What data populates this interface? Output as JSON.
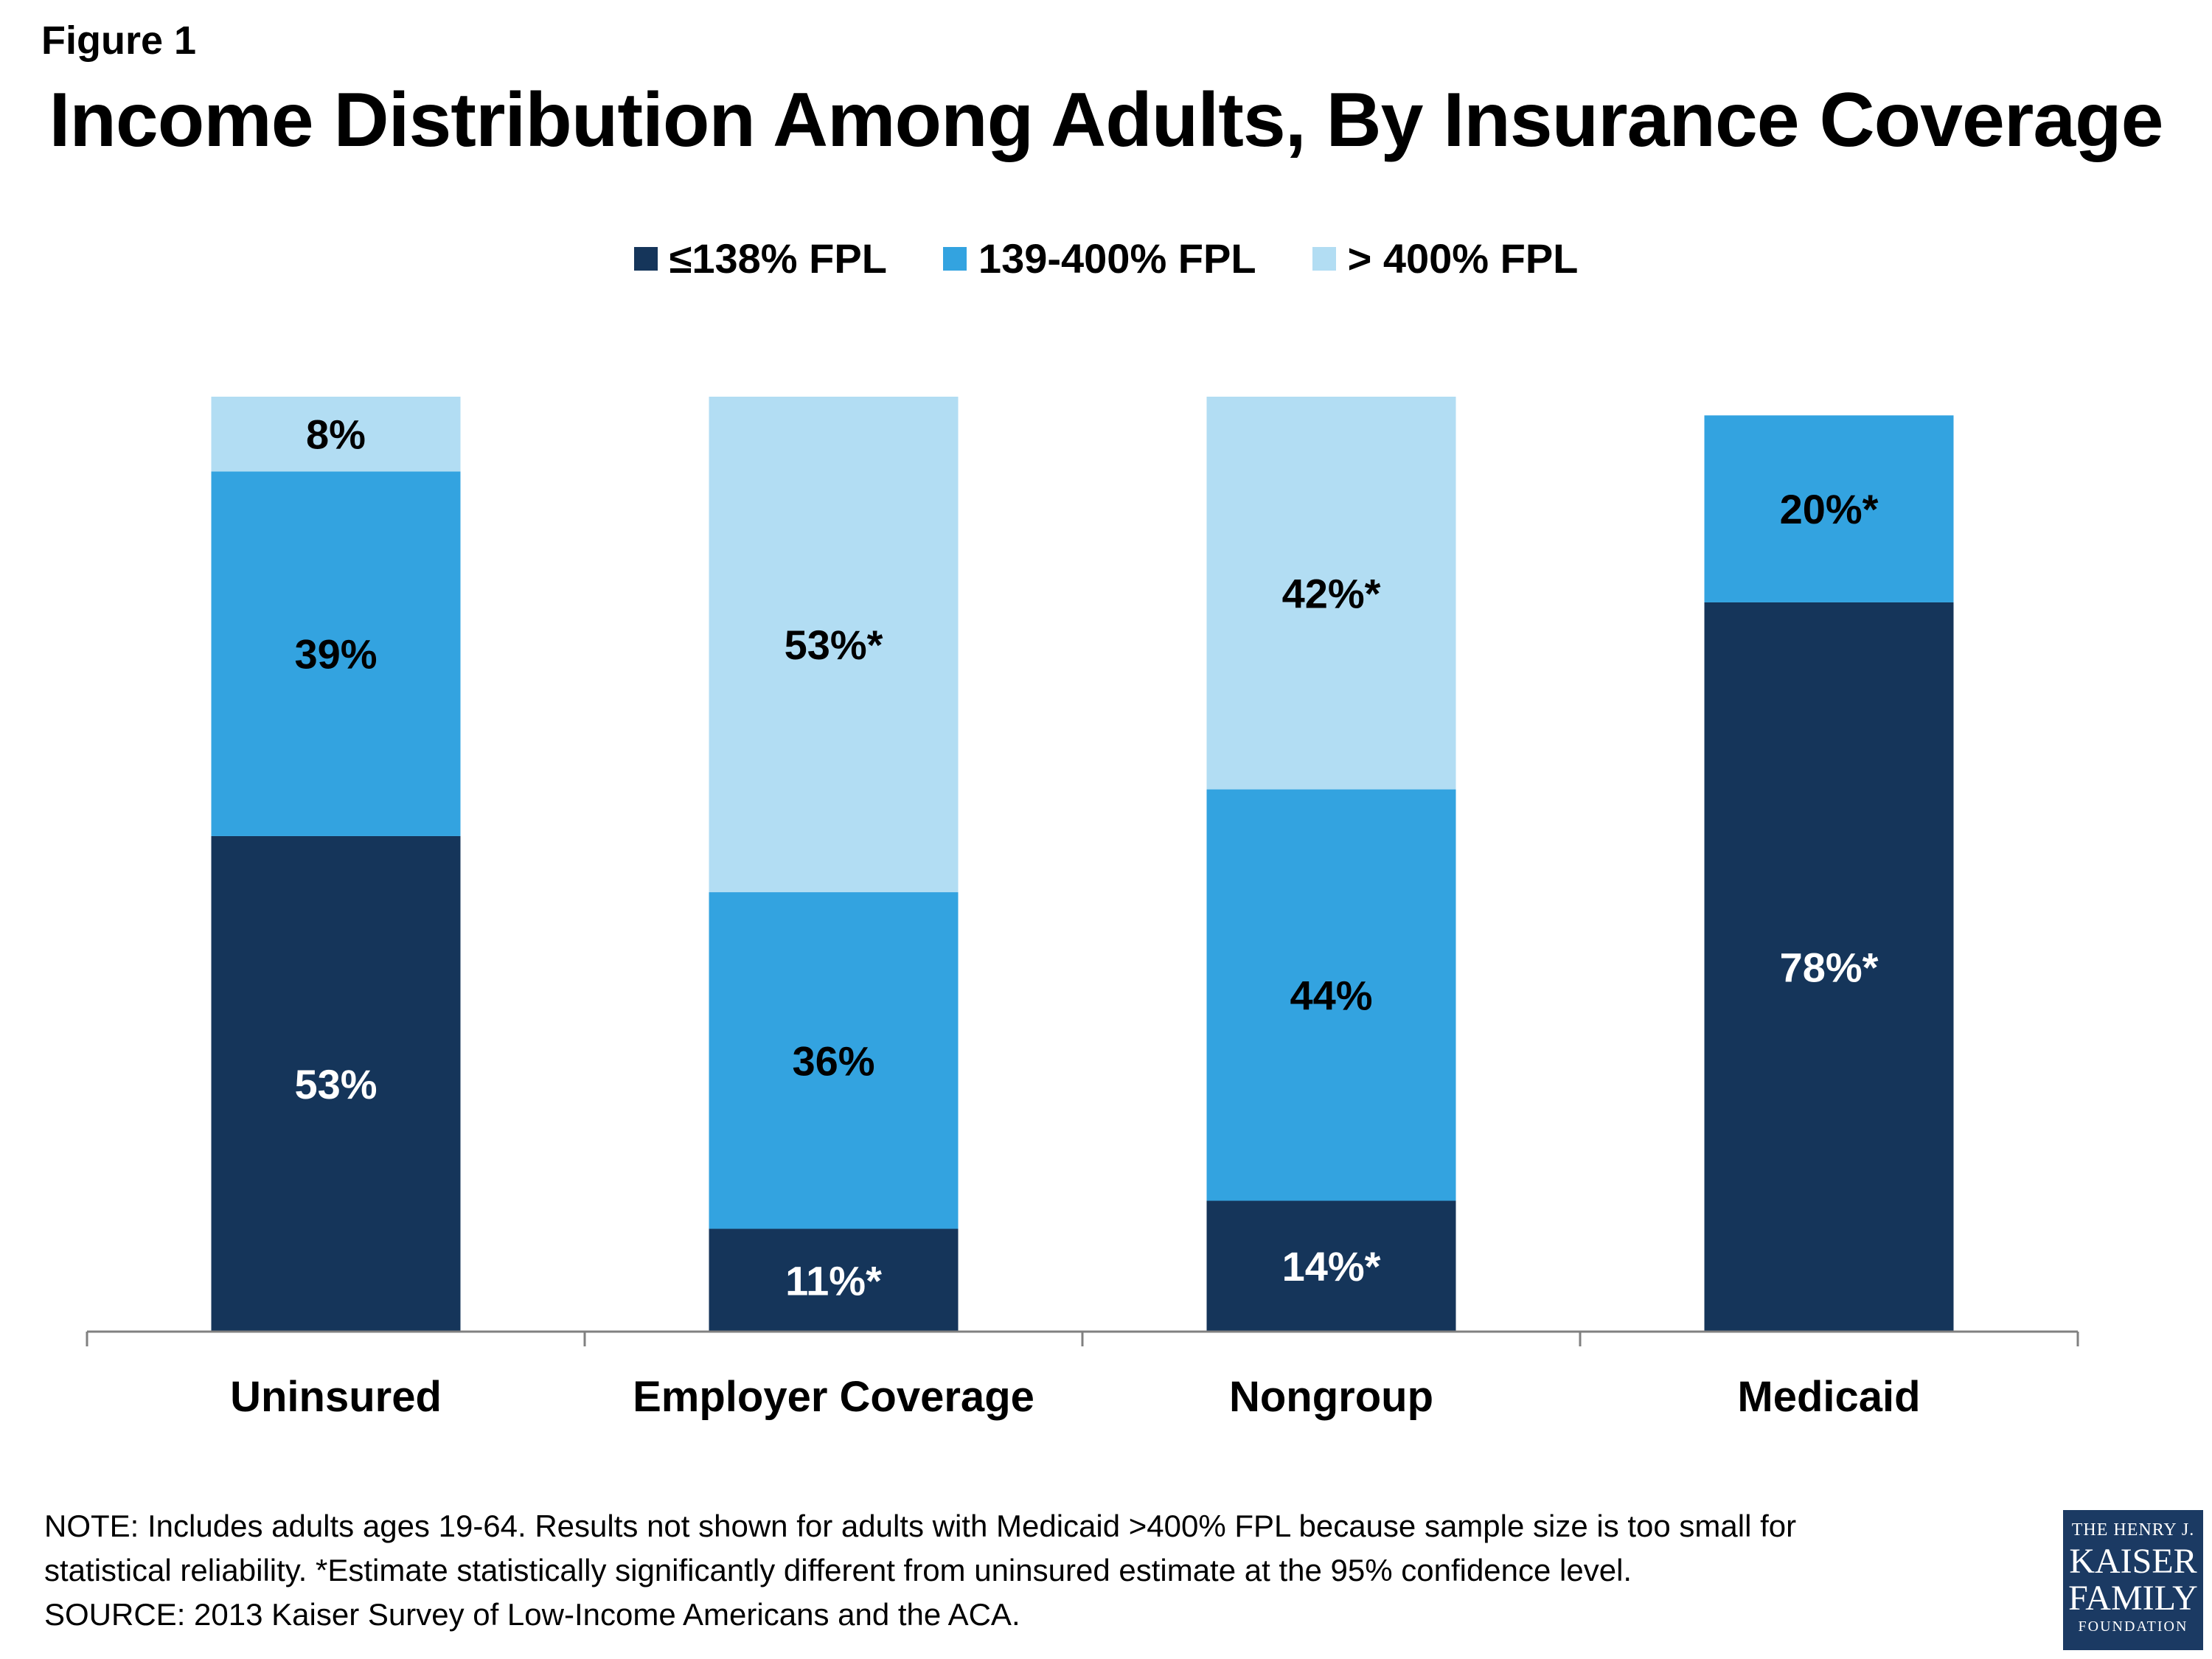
{
  "figure_label": "Figure 1",
  "legend": [
    {
      "label": "≤138% FPL",
      "color": "#15355a"
    },
    {
      "label": "139-400% FPL",
      "color": "#33a3e0"
    },
    {
      "label": "> 400% FPL",
      "color": "#b2ddf3"
    }
  ],
  "notes": {
    "line1": "NOTE: Includes adults ages 19-64. Results not shown for adults with Medicaid >400% FPL because sample size is too small for",
    "line2": "statistical reliability. *Estimate statistically significantly different from uninsured estimate at the 95% confidence level.",
    "line3": "SOURCE: 2013 Kaiser Survey of Low-Income Americans and the ACA."
  },
  "logo": {
    "line1": "THE HENRY J.",
    "line2": "KAISER",
    "line3": "FAMILY",
    "line4": "FOUNDATION"
  },
  "chart_data": {
    "type": "bar",
    "stacked": true,
    "title": "Income Distribution Among Adults, By Insurance Coverage",
    "categories": [
      "Uninsured",
      "Employer Coverage",
      "Nongroup",
      "Medicaid"
    ],
    "series": [
      {
        "name": "≤138% FPL",
        "values": [
          53,
          11,
          14,
          78
        ],
        "labels": [
          "53%",
          "11%*",
          "14%*",
          "78%*"
        ],
        "color": "#15355a",
        "label_color": "#ffffff"
      },
      {
        "name": "139-400% FPL",
        "values": [
          39,
          36,
          44,
          20
        ],
        "labels": [
          "39%",
          "36%",
          "44%",
          "20%*"
        ],
        "color": "#33a3e0",
        "label_color": "#000000"
      },
      {
        "name": "> 400% FPL",
        "values": [
          8,
          53,
          42,
          null
        ],
        "labels": [
          "8%",
          "53%*",
          "42%*",
          ""
        ],
        "color": "#b2ddf3",
        "label_color": "#000000"
      }
    ],
    "ylim": [
      0,
      100
    ],
    "y_axis_visible": false,
    "grid": false,
    "legend_position": "top-center"
  }
}
